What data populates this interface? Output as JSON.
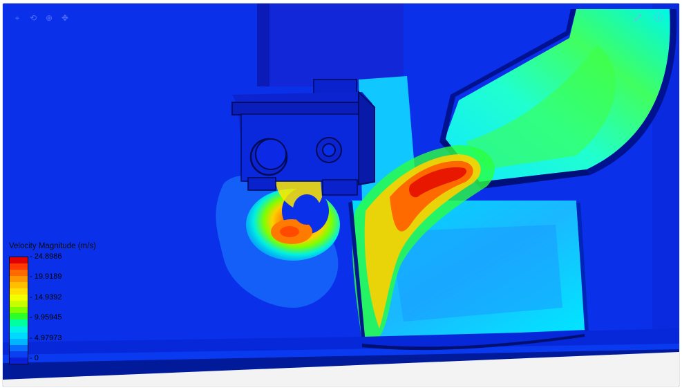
{
  "toolbar": {
    "icons": [
      "cursor-icon",
      "rotate-icon",
      "zoom-icon",
      "pan-icon"
    ]
  },
  "corner": {
    "expand_icon": "⤢",
    "info_icon": "ⓘ"
  },
  "legend": {
    "title": "Velocity Magnitude (m/s)",
    "labels": [
      "24.8986",
      "19.9189",
      "14.9392",
      "9.95945",
      "4.97973",
      "0"
    ],
    "colors": [
      "#e00000",
      "#ff3a00",
      "#ff6a00",
      "#ff9800",
      "#ffbf00",
      "#ffe000",
      "#f2ff00",
      "#c8ff00",
      "#7dff00",
      "#2bff2b",
      "#00ffa0",
      "#00f2e6",
      "#00d9ff",
      "#00b5ff",
      "#0a6cff",
      "#0a40f0",
      "#0a1fd8"
    ]
  }
}
